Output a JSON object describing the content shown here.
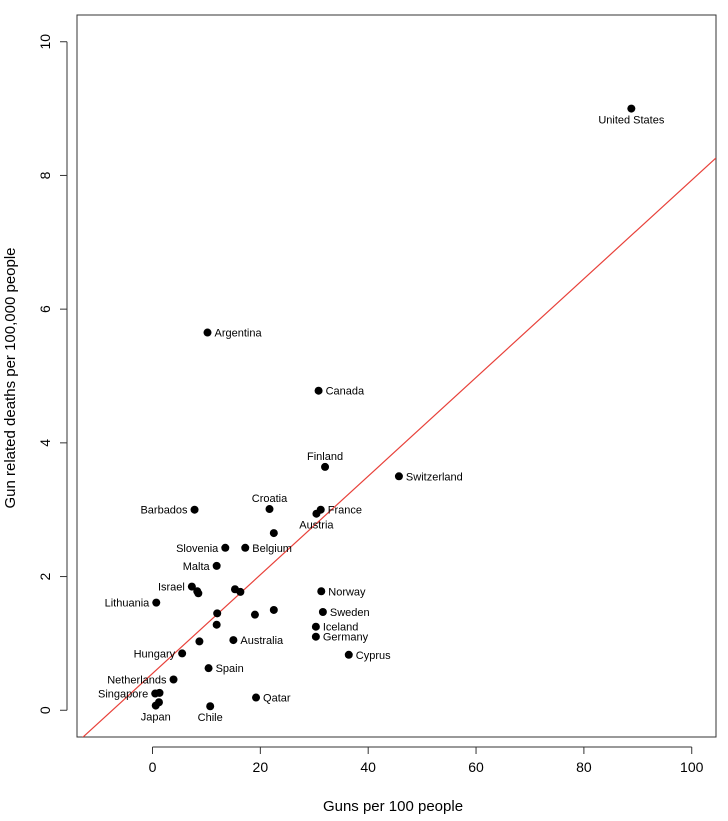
{
  "chart_data": {
    "type": "scatter",
    "title": "",
    "xlabel": "Guns per 100 people",
    "ylabel": "Gun related deaths per 100,000 people",
    "xlim": [
      -14,
      104.5
    ],
    "ylim": [
      -0.4,
      10.4
    ],
    "xticks": [
      0,
      20,
      40,
      60,
      80,
      100
    ],
    "yticks": [
      0,
      2,
      4,
      6,
      8,
      10
    ],
    "grid": false,
    "point_color": "#000000",
    "fit_line_color": "#e8413a",
    "fit_line": {
      "intercept": 0.55,
      "slope": 0.0738
    },
    "points": [
      {
        "x": 88.8,
        "y": 9.0,
        "label": "United States",
        "pos": "below"
      },
      {
        "x": 10.2,
        "y": 5.65,
        "label": "Argentina",
        "pos": "right"
      },
      {
        "x": 30.8,
        "y": 4.78,
        "label": "Canada",
        "pos": "right"
      },
      {
        "x": 32.0,
        "y": 3.64,
        "label": "Finland",
        "pos": "above"
      },
      {
        "x": 45.7,
        "y": 3.5,
        "label": "Switzerland",
        "pos": "right"
      },
      {
        "x": 21.7,
        "y": 3.01,
        "label": "Croatia",
        "pos": "above"
      },
      {
        "x": 7.8,
        "y": 3.0,
        "label": "Barbados",
        "pos": "left"
      },
      {
        "x": 31.2,
        "y": 3.0,
        "label": "France",
        "pos": "right"
      },
      {
        "x": 30.4,
        "y": 2.94,
        "label": "Austria",
        "pos": "below"
      },
      {
        "x": 22.5,
        "y": 2.65,
        "label": "",
        "pos": ""
      },
      {
        "x": 13.5,
        "y": 2.43,
        "label": "Slovenia",
        "pos": "left"
      },
      {
        "x": 17.2,
        "y": 2.43,
        "label": "Belgium",
        "pos": "right"
      },
      {
        "x": 11.9,
        "y": 2.16,
        "label": "Malta",
        "pos": "left"
      },
      {
        "x": 7.3,
        "y": 1.85,
        "label": "Israel",
        "pos": "left"
      },
      {
        "x": 15.3,
        "y": 1.81,
        "label": "",
        "pos": ""
      },
      {
        "x": 16.3,
        "y": 1.77,
        "label": "",
        "pos": ""
      },
      {
        "x": 8.3,
        "y": 1.78,
        "label": "",
        "pos": ""
      },
      {
        "x": 8.5,
        "y": 1.75,
        "label": "",
        "pos": ""
      },
      {
        "x": 31.3,
        "y": 1.78,
        "label": "Norway",
        "pos": "right"
      },
      {
        "x": 0.7,
        "y": 1.61,
        "label": "Lithuania",
        "pos": "left"
      },
      {
        "x": 22.5,
        "y": 1.5,
        "label": "",
        "pos": ""
      },
      {
        "x": 31.6,
        "y": 1.47,
        "label": "Sweden",
        "pos": "right"
      },
      {
        "x": 12.0,
        "y": 1.45,
        "label": "",
        "pos": ""
      },
      {
        "x": 19.0,
        "y": 1.43,
        "label": "",
        "pos": ""
      },
      {
        "x": 11.9,
        "y": 1.28,
        "label": "",
        "pos": ""
      },
      {
        "x": 30.3,
        "y": 1.25,
        "label": "Iceland",
        "pos": "right"
      },
      {
        "x": 30.3,
        "y": 1.1,
        "label": "Germany",
        "pos": "right"
      },
      {
        "x": 15.0,
        "y": 1.05,
        "label": "Australia",
        "pos": "right"
      },
      {
        "x": 8.7,
        "y": 1.03,
        "label": "",
        "pos": ""
      },
      {
        "x": 5.5,
        "y": 0.85,
        "label": "Hungary",
        "pos": "left"
      },
      {
        "x": 36.4,
        "y": 0.83,
        "label": "Cyprus",
        "pos": "right"
      },
      {
        "x": 10.4,
        "y": 0.63,
        "label": "Spain",
        "pos": "right"
      },
      {
        "x": 3.9,
        "y": 0.46,
        "label": "Netherlands",
        "pos": "left"
      },
      {
        "x": 0.5,
        "y": 0.25,
        "label": "Singapore",
        "pos": "left"
      },
      {
        "x": 1.3,
        "y": 0.26,
        "label": "",
        "pos": ""
      },
      {
        "x": 19.2,
        "y": 0.19,
        "label": "Qatar",
        "pos": "right"
      },
      {
        "x": 1.2,
        "y": 0.12,
        "label": "",
        "pos": ""
      },
      {
        "x": 0.6,
        "y": 0.07,
        "label": "Japan",
        "pos": "below"
      },
      {
        "x": 10.7,
        "y": 0.06,
        "label": "Chile",
        "pos": "below"
      }
    ]
  }
}
